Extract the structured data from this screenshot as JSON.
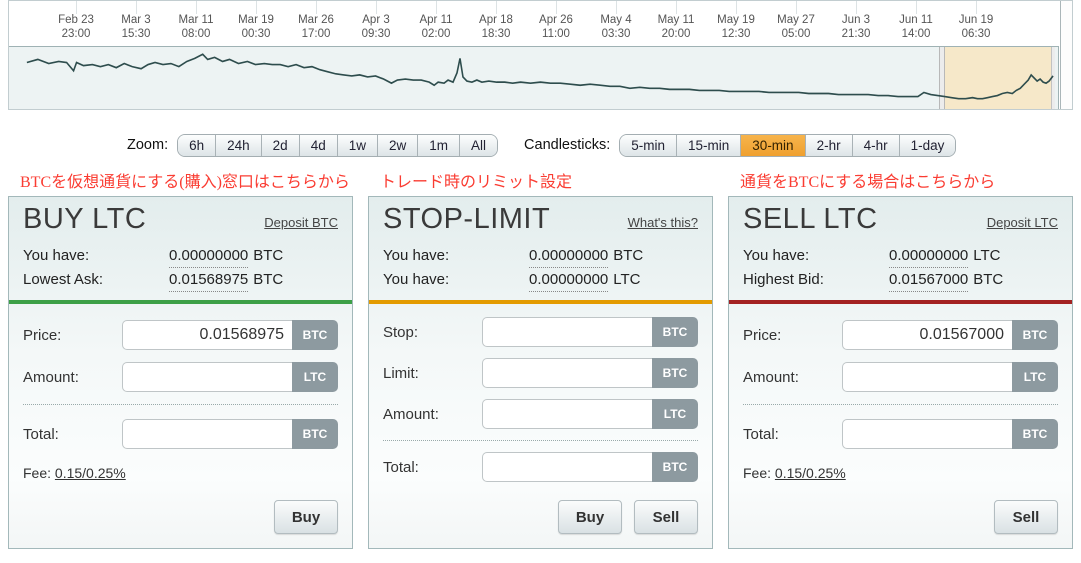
{
  "timeline": {
    "axis_labels": [
      {
        "date": "Feb 23",
        "time": "23:00"
      },
      {
        "date": "Mar 3",
        "time": "15:30"
      },
      {
        "date": "Mar 11",
        "time": "08:00"
      },
      {
        "date": "Mar 19",
        "time": "00:30"
      },
      {
        "date": "Mar 26",
        "time": "17:00"
      },
      {
        "date": "Apr 3",
        "time": "09:30"
      },
      {
        "date": "Apr 11",
        "time": "02:00"
      },
      {
        "date": "Apr 18",
        "time": "18:30"
      },
      {
        "date": "Apr 26",
        "time": "11:00"
      },
      {
        "date": "May 4",
        "time": "03:30"
      },
      {
        "date": "May 11",
        "time": "20:00"
      },
      {
        "date": "May 19",
        "time": "12:30"
      },
      {
        "date": "May 27",
        "time": "05:00"
      },
      {
        "date": "Jun 3",
        "time": "21:30"
      },
      {
        "date": "Jun 11",
        "time": "14:00"
      },
      {
        "date": "Jun 19",
        "time": "06:30"
      }
    ],
    "sparkline": {
      "color": "#2e4d4d",
      "selection_color": "#f6e8c9",
      "points": [
        [
          18,
          15
        ],
        [
          29,
          12
        ],
        [
          40,
          16
        ],
        [
          50,
          14
        ],
        [
          58,
          15
        ],
        [
          65,
          23
        ],
        [
          68,
          15
        ],
        [
          75,
          18
        ],
        [
          84,
          17
        ],
        [
          92,
          19
        ],
        [
          100,
          17
        ],
        [
          108,
          20
        ],
        [
          116,
          16
        ],
        [
          124,
          19
        ],
        [
          133,
          21
        ],
        [
          140,
          17
        ],
        [
          147,
          15
        ],
        [
          155,
          17
        ],
        [
          163,
          16
        ],
        [
          171,
          19
        ],
        [
          179,
          14
        ],
        [
          187,
          11
        ],
        [
          195,
          7
        ],
        [
          200,
          12
        ],
        [
          207,
          10
        ],
        [
          215,
          14
        ],
        [
          222,
          12
        ],
        [
          231,
          16
        ],
        [
          240,
          14
        ],
        [
          248,
          17
        ],
        [
          257,
          16
        ],
        [
          265,
          17
        ],
        [
          273,
          17
        ],
        [
          281,
          19
        ],
        [
          289,
          17
        ],
        [
          297,
          20
        ],
        [
          305,
          19
        ],
        [
          313,
          22
        ],
        [
          321,
          24
        ],
        [
          329,
          26
        ],
        [
          337,
          27
        ],
        [
          345,
          28
        ],
        [
          353,
          27
        ],
        [
          361,
          29
        ],
        [
          369,
          28
        ],
        [
          377,
          31
        ],
        [
          385,
          35
        ],
        [
          391,
          32
        ],
        [
          399,
          31
        ],
        [
          407,
          32
        ],
        [
          415,
          32
        ],
        [
          423,
          34
        ],
        [
          428,
          37
        ],
        [
          432,
          34
        ],
        [
          438,
          35
        ],
        [
          442,
          32
        ],
        [
          447,
          34
        ],
        [
          451,
          25
        ],
        [
          454,
          11
        ],
        [
          457,
          29
        ],
        [
          461,
          33
        ],
        [
          466,
          34
        ],
        [
          471,
          32
        ],
        [
          476,
          34
        ],
        [
          483,
          33
        ],
        [
          491,
          34
        ],
        [
          499,
          34
        ],
        [
          507,
          35
        ],
        [
          515,
          34
        ],
        [
          525,
          35
        ],
        [
          535,
          34
        ],
        [
          545,
          35
        ],
        [
          555,
          35
        ],
        [
          565,
          36
        ],
        [
          575,
          37
        ],
        [
          585,
          36
        ],
        [
          595,
          37
        ],
        [
          605,
          38
        ],
        [
          615,
          38
        ],
        [
          625,
          40
        ],
        [
          635,
          39
        ],
        [
          645,
          40
        ],
        [
          655,
          40
        ],
        [
          665,
          41
        ],
        [
          675,
          41
        ],
        [
          685,
          41
        ],
        [
          695,
          42
        ],
        [
          705,
          42
        ],
        [
          715,
          42
        ],
        [
          725,
          43
        ],
        [
          735,
          43
        ],
        [
          745,
          43
        ],
        [
          755,
          43
        ],
        [
          765,
          44
        ],
        [
          775,
          44
        ],
        [
          785,
          44
        ],
        [
          795,
          44
        ],
        [
          805,
          45
        ],
        [
          815,
          45
        ],
        [
          825,
          45
        ],
        [
          835,
          46
        ],
        [
          845,
          46
        ],
        [
          855,
          46
        ],
        [
          865,
          46
        ],
        [
          875,
          47
        ],
        [
          885,
          47
        ],
        [
          895,
          48
        ],
        [
          905,
          48
        ],
        [
          915,
          48
        ],
        [
          921,
          44
        ],
        [
          928,
          46
        ],
        [
          935,
          47
        ],
        [
          942,
          48
        ],
        [
          949,
          49
        ],
        [
          956,
          50
        ],
        [
          963,
          50
        ],
        [
          970,
          49
        ],
        [
          975,
          50
        ],
        [
          980,
          50
        ],
        [
          985,
          49
        ],
        [
          990,
          48
        ],
        [
          995,
          47
        ],
        [
          1000,
          45
        ],
        [
          1005,
          44
        ],
        [
          1010,
          45
        ],
        [
          1014,
          42
        ],
        [
          1018,
          40
        ],
        [
          1022,
          36
        ],
        [
          1026,
          32
        ],
        [
          1029,
          27
        ],
        [
          1032,
          30
        ],
        [
          1035,
          33
        ],
        [
          1038,
          31
        ],
        [
          1041,
          34
        ],
        [
          1044,
          35
        ],
        [
          1047,
          33
        ],
        [
          1051,
          28
        ]
      ]
    }
  },
  "controls": {
    "zoom_label": "Zoom:",
    "zoom_options": [
      "6h",
      "24h",
      "2d",
      "4d",
      "1w",
      "2w",
      "1m",
      "All"
    ],
    "candlesticks_label": "Candlesticks:",
    "candlestick_options": [
      "5-min",
      "15-min",
      "30-min",
      "2-hr",
      "4-hr",
      "1-day"
    ],
    "candlestick_selected": "30-min",
    "selected_color": "#f3a93d"
  },
  "annotations": {
    "buy": "BTCを仮想通貨にする(購入)窓口はこちらから",
    "stop": "トレード時のリミット設定",
    "sell": "通貨をBTCにする場合はこちらから",
    "color": "#fa3c32"
  },
  "panels": {
    "buy": {
      "title": "BUY LTC",
      "link": "Deposit BTC",
      "accent_color": "#3da047",
      "stats": [
        {
          "label": "You have:",
          "value": "0.00000000",
          "currency": "BTC"
        },
        {
          "label": "Lowest Ask:",
          "value": "0.01568975",
          "currency": "BTC"
        }
      ],
      "fields": [
        {
          "label": "Price:",
          "value": "0.01568975",
          "unit": "BTC"
        },
        {
          "label": "Amount:",
          "value": "",
          "unit": "LTC"
        }
      ],
      "total": {
        "label": "Total:",
        "value": "",
        "unit": "BTC"
      },
      "fee_label": "Fee:",
      "fee_value": "0.15/0.25%",
      "buttons": [
        "Buy"
      ]
    },
    "stop": {
      "title": "STOP-LIMIT",
      "link": "What's this?",
      "accent_color": "#e39b00",
      "stats": [
        {
          "label": "You have:",
          "value": "0.00000000",
          "currency": "BTC"
        },
        {
          "label": "You have:",
          "value": "0.00000000",
          "currency": "LTC"
        }
      ],
      "fields": [
        {
          "label": "Stop:",
          "value": "",
          "unit": "BTC"
        },
        {
          "label": "Limit:",
          "value": "",
          "unit": "BTC"
        },
        {
          "label": "Amount:",
          "value": "",
          "unit": "LTC"
        }
      ],
      "total": {
        "label": "Total:",
        "value": "",
        "unit": "BTC"
      },
      "buttons": [
        "Buy",
        "Sell"
      ]
    },
    "sell": {
      "title": "SELL LTC",
      "link": "Deposit LTC",
      "accent_color": "#a32222",
      "stats": [
        {
          "label": "You have:",
          "value": "0.00000000",
          "currency": "LTC"
        },
        {
          "label": "Highest Bid:",
          "value": "0.01567000",
          "currency": "BTC"
        }
      ],
      "fields": [
        {
          "label": "Price:",
          "value": "0.01567000",
          "unit": "BTC"
        },
        {
          "label": "Amount:",
          "value": "",
          "unit": "LTC"
        }
      ],
      "total": {
        "label": "Total:",
        "value": "",
        "unit": "BTC"
      },
      "fee_label": "Fee:",
      "fee_value": "0.15/0.25%",
      "buttons": [
        "Sell"
      ]
    }
  }
}
